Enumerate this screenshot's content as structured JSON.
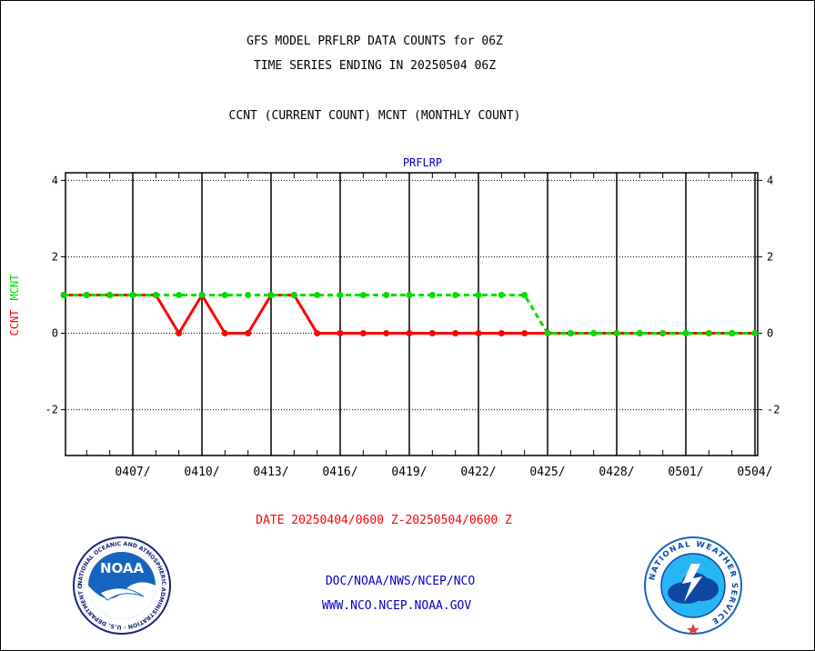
{
  "header": {
    "title_line1": "GFS MODEL PRFLRP DATA COUNTS for 06Z",
    "title_line2": "TIME SERIES ENDING IN 20250504 06Z",
    "subtitle": "CCNT (CURRENT COUNT) MCNT (MONTHLY COUNT)"
  },
  "footer": {
    "org_line": "DOC/NOAA/NWS/NCEP/NCO",
    "url_line": "WWW.NCO.NCEP.NOAA.GOV"
  },
  "logos": {
    "noaa_text": "NOAA",
    "noaa_ring_text": "NATIONAL OCEANIC AND ATMOSPHERIC ADMINISTRATION · U.S. DEPARTMENT OF COMMERCE",
    "nws_ring_text": "NATIONAL WEATHER SERVICE"
  },
  "colors": {
    "ccnt": "#ff0000",
    "mcnt": "#00dd00",
    "plot_title": "#0000cc",
    "date_label": "#ff0000",
    "footer_text": "#0000cc"
  },
  "chart_data": {
    "type": "line",
    "title": "PRFLRP",
    "xlabel": "DATE 20250404/0600 Z-20250504/0600 Z",
    "ylabel_parts": [
      "CCNT",
      "MCNT"
    ],
    "ylim": [
      -3.2,
      4.2
    ],
    "yticks": [
      -2,
      0,
      2,
      4
    ],
    "xlim": [
      0,
      30
    ],
    "x_tick_labels": [
      {
        "x": 3,
        "label": "0407/"
      },
      {
        "x": 6,
        "label": "0410/"
      },
      {
        "x": 9,
        "label": "0413/"
      },
      {
        "x": 12,
        "label": "0416/"
      },
      {
        "x": 15,
        "label": "0419/"
      },
      {
        "x": 18,
        "label": "0422/"
      },
      {
        "x": 21,
        "label": "0425/"
      },
      {
        "x": 24,
        "label": "0428/"
      },
      {
        "x": 27,
        "label": "0501/"
      },
      {
        "x": 30,
        "label": "0504/"
      }
    ],
    "grid": true,
    "series": [
      {
        "name": "CCNT",
        "color": "#ff0000",
        "style": "solid",
        "x": [
          0,
          1,
          2,
          3,
          4,
          5,
          6,
          7,
          8,
          9,
          10,
          11,
          12,
          13,
          14,
          15,
          16,
          17,
          18,
          19,
          20,
          21,
          22,
          23,
          24,
          25,
          26,
          27,
          28,
          29,
          30
        ],
        "values": [
          1,
          1,
          1,
          1,
          1,
          0,
          1,
          0,
          0,
          1,
          1,
          0,
          0,
          0,
          0,
          0,
          0,
          0,
          0,
          0,
          0,
          0,
          0,
          0,
          0,
          0,
          0,
          0,
          0,
          0,
          0
        ]
      },
      {
        "name": "MCNT",
        "color": "#00dd00",
        "style": "dashed",
        "x": [
          0,
          1,
          2,
          3,
          4,
          5,
          6,
          7,
          8,
          9,
          10,
          11,
          12,
          13,
          14,
          15,
          16,
          17,
          18,
          19,
          20,
          21,
          22,
          23,
          24,
          25,
          26,
          27,
          28,
          29,
          30
        ],
        "values": [
          1,
          1,
          1,
          1,
          1,
          1,
          1,
          1,
          1,
          1,
          1,
          1,
          1,
          1,
          1,
          1,
          1,
          1,
          1,
          1,
          1,
          0,
          0,
          0,
          0,
          0,
          0,
          0,
          0,
          0,
          0
        ]
      }
    ]
  }
}
